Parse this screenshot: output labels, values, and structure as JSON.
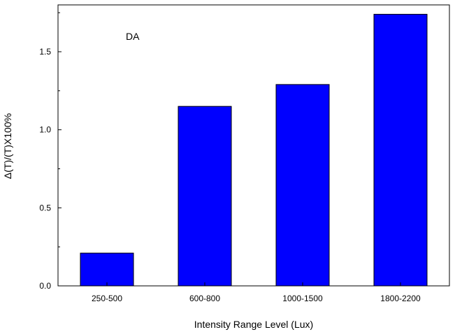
{
  "chart_data": {
    "type": "bar",
    "categories": [
      "250-500",
      "600-800",
      "1000-1500",
      "1800-2200"
    ],
    "values": [
      0.21,
      1.15,
      1.29,
      1.74
    ],
    "xlabel": "Intensity Range Level (Lux)",
    "ylabel": "Δ(T)/(T)X100%",
    "ylim": [
      0,
      1.8
    ],
    "yticks": [
      "0.0",
      "0.5",
      "1.0",
      "1.5"
    ],
    "annotations": [
      {
        "text": "DA"
      }
    ],
    "grid": false,
    "legend": "none",
    "colors": {
      "bar_fill": "#0000ff",
      "bar_stroke": "#000000",
      "axis": "#000000"
    }
  }
}
